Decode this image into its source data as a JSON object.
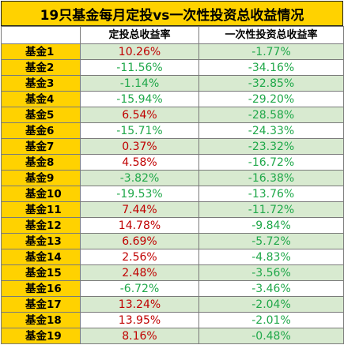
{
  "title": "19只基金每月定投vs一次性投资总收益情况",
  "columns": [
    "",
    "定投总收益率",
    "一次性投资总收益率"
  ],
  "rows": [
    {
      "name": "基金1",
      "dca": "10.26%",
      "lump": "-1.77%"
    },
    {
      "name": "基金2",
      "dca": "-11.56%",
      "lump": "-34.16%"
    },
    {
      "name": "基金3",
      "dca": "-1.14%",
      "lump": "-32.85%"
    },
    {
      "name": "基金4",
      "dca": "-15.94%",
      "lump": "-29.20%"
    },
    {
      "name": "基金5",
      "dca": "6.54%",
      "lump": "-28.58%"
    },
    {
      "name": "基金6",
      "dca": "-15.71%",
      "lump": "-24.33%"
    },
    {
      "name": "基金7",
      "dca": "0.37%",
      "lump": "-23.32%"
    },
    {
      "name": "基金8",
      "dca": "4.58%",
      "lump": "-16.72%"
    },
    {
      "name": "基金9",
      "dca": "-3.82%",
      "lump": "-16.38%"
    },
    {
      "name": "基金10",
      "dca": "-19.53%",
      "lump": "-13.76%"
    },
    {
      "name": "基金11",
      "dca": "7.44%",
      "lump": "-11.72%"
    },
    {
      "name": "基金12",
      "dca": "14.78%",
      "lump": "-9.84%"
    },
    {
      "name": "基金13",
      "dca": "6.69%",
      "lump": "-5.72%"
    },
    {
      "name": "基金14",
      "dca": "2.56%",
      "lump": "-4.83%"
    },
    {
      "name": "基金15",
      "dca": "2.48%",
      "lump": "-3.56%"
    },
    {
      "name": "基金16",
      "dca": "-6.72%",
      "lump": "-3.46%"
    },
    {
      "name": "基金17",
      "dca": "13.24%",
      "lump": "-2.04%"
    },
    {
      "name": "基金18",
      "dca": "13.95%",
      "lump": "-2.01%"
    },
    {
      "name": "基金19",
      "dca": "8.16%",
      "lump": "-0.48%"
    }
  ],
  "colors": {
    "title_bg": "#ffd200",
    "name_bg": "#ffd200",
    "stripe_bg": "#d8ead0",
    "positive": "#c00000",
    "negative": "#20a84a"
  }
}
